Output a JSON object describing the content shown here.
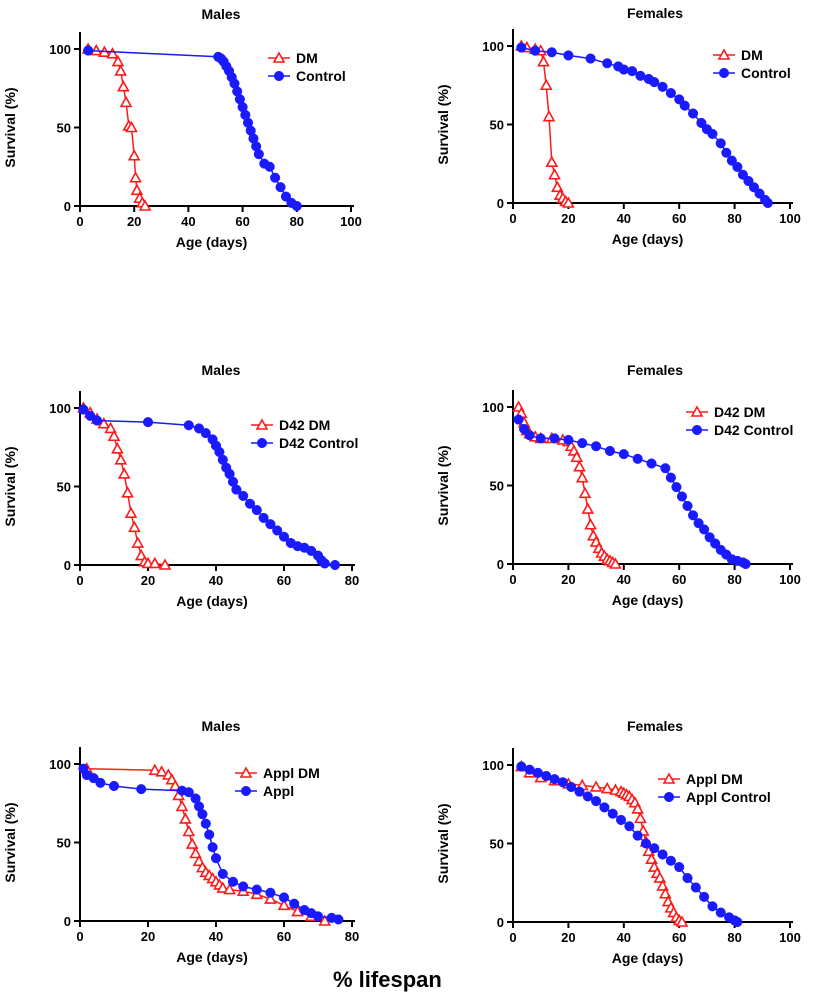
{
  "footer_text": "% lifespan",
  "colors": {
    "dm": "#ff1a1a",
    "control": "#1a1aff",
    "axis": "#000000"
  },
  "chart_data": [
    {
      "type": "line",
      "title": "Males",
      "xlabel": "Age (days)",
      "ylabel": "Survival (%)",
      "xlim": [
        0,
        100
      ],
      "ylim": [
        0,
        100
      ],
      "xticks": [
        0,
        20,
        40,
        60,
        80,
        100
      ],
      "yticks": [
        0,
        50,
        100
      ],
      "legend_position": "top-right",
      "series": [
        {
          "name": "DM",
          "marker": "triangle",
          "x": [
            3,
            6,
            9,
            12,
            14,
            15,
            16,
            17,
            18,
            19,
            20,
            20.5,
            21,
            22,
            23,
            24
          ],
          "y": [
            100,
            99,
            98,
            97,
            92,
            86,
            76,
            66,
            51,
            50,
            32,
            18,
            10,
            5,
            2,
            0
          ]
        },
        {
          "name": "Control",
          "marker": "circle",
          "x": [
            3,
            51,
            52,
            53,
            54,
            55,
            56,
            57,
            58,
            59,
            60,
            61,
            62,
            63,
            64,
            65,
            66,
            68,
            70,
            72,
            74,
            76,
            78,
            80
          ],
          "y": [
            99,
            95,
            94,
            92,
            89,
            86,
            82,
            78,
            73,
            68,
            63,
            58,
            53,
            48,
            43,
            38,
            33,
            27,
            25,
            18,
            12,
            6,
            2,
            0
          ]
        }
      ]
    },
    {
      "type": "line",
      "title": "Females",
      "xlabel": "Age (days)",
      "ylabel": "Survival (%)",
      "xlim": [
        0,
        100
      ],
      "ylim": [
        0,
        100
      ],
      "xticks": [
        0,
        20,
        40,
        60,
        80,
        100
      ],
      "yticks": [
        0,
        50,
        100
      ],
      "legend_position": "top-right",
      "series": [
        {
          "name": "DM",
          "marker": "triangle",
          "x": [
            3,
            5,
            8,
            10,
            11,
            12,
            13,
            14,
            15,
            16,
            17,
            18,
            19,
            20
          ],
          "y": [
            100,
            99,
            98,
            97,
            90,
            75,
            55,
            26,
            18,
            10,
            5,
            3,
            1,
            0
          ]
        },
        {
          "name": "Control",
          "marker": "circle",
          "x": [
            3,
            8,
            14,
            20,
            28,
            34,
            38,
            40,
            43,
            46,
            49,
            51,
            54,
            57,
            60,
            62,
            65,
            68,
            70,
            72,
            75,
            77,
            79,
            81,
            83,
            85,
            87,
            89,
            91,
            92
          ],
          "y": [
            99,
            97,
            96,
            94,
            92,
            89,
            87,
            85,
            84,
            81,
            79,
            77,
            74,
            70,
            66,
            62,
            57,
            51,
            47,
            44,
            38,
            32,
            27,
            23,
            18,
            14,
            10,
            6,
            2,
            0
          ]
        }
      ]
    },
    {
      "type": "line",
      "title": "Males",
      "xlabel": "Age (days)",
      "ylabel": "Survival (%)",
      "xlim": [
        0,
        80
      ],
      "ylim": [
        0,
        100
      ],
      "xticks": [
        0,
        20,
        40,
        60,
        80
      ],
      "yticks": [
        0,
        50,
        100
      ],
      "legend_position": "top-right",
      "series": [
        {
          "name": "D42 DM",
          "marker": "triangle",
          "x": [
            1,
            3,
            5,
            7,
            9,
            10,
            11,
            12,
            13,
            14,
            15,
            16,
            17,
            18,
            19,
            20,
            22,
            25
          ],
          "y": [
            100,
            97,
            93,
            90,
            87,
            82,
            74,
            67,
            58,
            46,
            33,
            24,
            14,
            6,
            2,
            1,
            1,
            0
          ]
        },
        {
          "name": "D42 Control",
          "marker": "circle",
          "x": [
            1,
            3,
            5,
            20,
            32,
            35,
            37,
            39,
            40,
            41,
            42,
            43,
            44,
            45,
            46,
            48,
            50,
            52,
            54,
            56,
            58,
            60,
            62,
            64,
            66,
            68,
            70,
            71,
            72,
            75
          ],
          "y": [
            99,
            95,
            92,
            91,
            89,
            87,
            84,
            80,
            76,
            72,
            67,
            62,
            58,
            53,
            48,
            44,
            39,
            35,
            30,
            26,
            22,
            18,
            14,
            12,
            11,
            9,
            6,
            3,
            1,
            0
          ]
        }
      ]
    },
    {
      "type": "line",
      "title": "Females",
      "xlabel": "Age (days)",
      "ylabel": "Survival (%)",
      "xlim": [
        0,
        100
      ],
      "ylim": [
        0,
        100
      ],
      "xticks": [
        0,
        20,
        40,
        60,
        80,
        100
      ],
      "yticks": [
        0,
        50,
        100
      ],
      "legend_position": "top-right",
      "series": [
        {
          "name": "D42 DM",
          "marker": "triangle",
          "x": [
            2,
            3,
            4,
            5,
            6,
            8,
            10,
            14,
            18,
            20,
            21,
            22,
            23,
            24,
            25,
            26,
            27,
            28,
            29,
            30,
            31,
            32,
            33,
            34,
            35,
            36,
            37
          ],
          "y": [
            100,
            96,
            90,
            85,
            83,
            81,
            80,
            80,
            79,
            78,
            75,
            72,
            68,
            62,
            55,
            45,
            35,
            25,
            18,
            14,
            10,
            7,
            5,
            3,
            2,
            1,
            0
          ]
        },
        {
          "name": "D42 Control",
          "marker": "circle",
          "x": [
            2,
            4,
            6,
            10,
            15,
            20,
            25,
            30,
            35,
            40,
            45,
            50,
            55,
            57,
            59,
            61,
            63,
            65,
            67,
            69,
            71,
            73,
            75,
            77,
            79,
            81,
            83,
            84
          ],
          "y": [
            92,
            86,
            82,
            80,
            80,
            79,
            77,
            75,
            72,
            70,
            67,
            64,
            61,
            55,
            49,
            43,
            37,
            31,
            26,
            22,
            17,
            13,
            9,
            6,
            3,
            2,
            1,
            0
          ]
        }
      ]
    },
    {
      "type": "line",
      "title": "Males",
      "xlabel": "Age (days)",
      "ylabel": "Survival (%)",
      "xlim": [
        0,
        80
      ],
      "ylim": [
        0,
        100
      ],
      "xticks": [
        0,
        20,
        40,
        60,
        80
      ],
      "yticks": [
        0,
        50,
        100
      ],
      "legend_position": "top-right",
      "series": [
        {
          "name": "Appl DM",
          "marker": "triangle",
          "x": [
            2,
            22,
            24,
            26,
            27,
            28,
            29,
            30,
            31,
            32,
            33,
            34,
            35,
            36,
            37,
            38,
            39,
            40,
            41,
            42,
            44,
            48,
            52,
            56,
            60,
            64,
            68,
            72
          ],
          "y": [
            97,
            96,
            95,
            93,
            90,
            86,
            80,
            73,
            65,
            57,
            49,
            43,
            38,
            34,
            31,
            29,
            27,
            25,
            23,
            21,
            20,
            19,
            17,
            14,
            10,
            6,
            3,
            0
          ]
        },
        {
          "name": "Appl",
          "marker": "circle",
          "x": [
            1,
            2,
            4,
            6,
            10,
            18,
            30,
            32,
            34,
            35,
            36,
            37,
            38,
            39,
            40,
            42,
            45,
            48,
            52,
            56,
            60,
            63,
            66,
            68,
            70,
            74,
            76
          ],
          "y": [
            97,
            93,
            91,
            88,
            86,
            84,
            83,
            82,
            78,
            73,
            68,
            62,
            55,
            47,
            40,
            30,
            25,
            22,
            20,
            18,
            15,
            11,
            7,
            5,
            3,
            2,
            1
          ]
        }
      ]
    },
    {
      "type": "line",
      "title": "Females",
      "xlabel": "Age (days)",
      "ylabel": "Survival (%)",
      "xlim": [
        0,
        100
      ],
      "ylim": [
        0,
        100
      ],
      "xticks": [
        0,
        20,
        40,
        60,
        80,
        100
      ],
      "yticks": [
        0,
        50,
        100
      ],
      "legend_position": "top-right",
      "series": [
        {
          "name": "Appl DM",
          "marker": "triangle",
          "x": [
            3,
            6,
            10,
            15,
            20,
            25,
            30,
            34,
            37,
            39,
            40,
            41,
            42,
            43,
            44,
            45,
            46,
            47,
            48,
            49,
            50,
            51,
            52,
            53,
            54,
            55,
            56,
            57,
            58,
            59,
            60,
            61
          ],
          "y": [
            99,
            95,
            92,
            90,
            88,
            87,
            86,
            85,
            84,
            83,
            82,
            81,
            80,
            78,
            76,
            72,
            66,
            58,
            51,
            45,
            40,
            35,
            31,
            28,
            23,
            18,
            13,
            9,
            6,
            3,
            1,
            0
          ]
        },
        {
          "name": "Appl Control",
          "marker": "circle",
          "x": [
            3,
            6,
            9,
            12,
            15,
            18,
            21,
            24,
            27,
            30,
            33,
            36,
            39,
            42,
            45,
            48,
            51,
            54,
            57,
            60,
            63,
            66,
            69,
            72,
            75,
            78,
            80,
            81
          ],
          "y": [
            99,
            97,
            95,
            93,
            91,
            89,
            86,
            83,
            80,
            77,
            73,
            69,
            65,
            61,
            55,
            50,
            47,
            43,
            39,
            35,
            28,
            22,
            16,
            10,
            6,
            3,
            1,
            0
          ]
        }
      ]
    }
  ]
}
